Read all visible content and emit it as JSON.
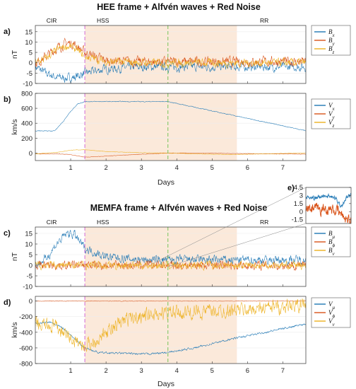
{
  "figure": {
    "titles": [
      "HEE frame + Alfvén waves + Red Noise",
      "MEMFA frame + Alfvén waves + Red Noise"
    ],
    "xlabel": "Days",
    "regions": [
      "CIR",
      "HSS",
      "RR"
    ],
    "colors": {
      "blue": "#1f77b4",
      "orange": "#d95319",
      "yellow": "#edb120",
      "shade": "#fbe9da",
      "magenta": "#d36ad9",
      "green": "#77c25a"
    }
  },
  "chart_data": [
    {
      "id": "a",
      "type": "line",
      "panel_label": "a)",
      "ylabel": "nT",
      "xlim": [
        0,
        7.65
      ],
      "ylim": [
        -10,
        18
      ],
      "xticks": [
        1,
        2,
        3,
        4,
        5,
        6,
        7
      ],
      "yticks": [
        -10,
        -5,
        0,
        5,
        10,
        15
      ],
      "shaded_region": [
        1.4,
        5.7
      ],
      "vlines": [
        {
          "x": 1.4,
          "color": "magenta"
        },
        {
          "x": 3.75,
          "color": "green"
        }
      ],
      "series": [
        {
          "name": "B",
          "subscript": "x",
          "color": "#1f77b4",
          "x": [
            0,
            0.3,
            0.6,
            0.9,
            1.1,
            1.4,
            2,
            3,
            4,
            5,
            6,
            7,
            7.65
          ],
          "y": [
            -2,
            -5,
            -7,
            -7.5,
            -7,
            -5,
            -3,
            -2,
            -2,
            -2,
            -2,
            -2,
            -2
          ],
          "noise": 1.6
        },
        {
          "name": "B",
          "subscript": "y",
          "color": "#d95319",
          "x": [
            0,
            0.3,
            0.6,
            0.9,
            1.1,
            1.4,
            2,
            3,
            4,
            5,
            6,
            7,
            7.65
          ],
          "y": [
            -0.5,
            3,
            7,
            9.5,
            9,
            5,
            1,
            0.5,
            0.5,
            0.5,
            0.5,
            0.5,
            0.5
          ],
          "noise": 1.8
        },
        {
          "name": "B",
          "subscript": "z",
          "color": "#edb120",
          "x": [
            0,
            0.3,
            0.6,
            0.9,
            1.1,
            1.4,
            2,
            3,
            4,
            5,
            6,
            7,
            7.65
          ],
          "y": [
            0,
            2,
            6,
            8,
            7,
            3,
            0.5,
            0,
            0,
            0,
            0,
            0,
            0
          ],
          "noise": 1.5
        }
      ]
    },
    {
      "id": "b",
      "type": "line",
      "panel_label": "b)",
      "ylabel": "km/s",
      "xlim": [
        0,
        7.65
      ],
      "ylim": [
        -100,
        800
      ],
      "xticks": [
        1,
        2,
        3,
        4,
        5,
        6,
        7
      ],
      "yticks": [
        0,
        200,
        400,
        600,
        800
      ],
      "xticklabels_shown": true,
      "shaded_region": [
        1.4,
        5.7
      ],
      "vlines": [
        {
          "x": 1.4,
          "color": "magenta"
        },
        {
          "x": 3.75,
          "color": "green"
        }
      ],
      "series": [
        {
          "name": "V",
          "subscript": "x",
          "color": "#1f77b4",
          "x": [
            0,
            0.55,
            0.8,
            1.0,
            1.2,
            1.4,
            3.75,
            7.65
          ],
          "y": [
            295,
            300,
            430,
            560,
            660,
            690,
            690,
            300
          ],
          "noise": 4
        },
        {
          "name": "V",
          "subscript": "y",
          "color": "#d95319",
          "x": [
            0,
            0.6,
            1.0,
            1.4,
            2.0,
            3.0,
            3.75,
            4.5,
            5.5,
            6.5,
            7.65
          ],
          "y": [
            -10,
            -12,
            -20,
            -55,
            -40,
            -15,
            0,
            0,
            -5,
            -10,
            -15
          ],
          "noise": 2
        },
        {
          "name": "V",
          "subscript": "z",
          "color": "#edb120",
          "x": [
            0,
            0.6,
            1.0,
            1.4,
            2.0,
            3.0,
            3.75,
            4.5,
            5.5,
            6.5,
            7.65
          ],
          "y": [
            -10,
            10,
            40,
            45,
            20,
            5,
            0,
            -10,
            -20,
            -10,
            0
          ],
          "noise": 2
        }
      ]
    },
    {
      "id": "c",
      "type": "line",
      "panel_label": "c)",
      "ylabel": "nT",
      "xlim": [
        0,
        7.65
      ],
      "ylim": [
        -10,
        18
      ],
      "xticks": [
        1,
        2,
        3,
        4,
        5,
        6,
        7
      ],
      "yticks": [
        -10,
        -5,
        0,
        5,
        10,
        15
      ],
      "shaded_region": [
        1.4,
        5.7
      ],
      "vlines": [
        {
          "x": 1.4,
          "color": "magenta"
        },
        {
          "x": 3.75,
          "color": "green"
        }
      ],
      "series": [
        {
          "name": "B",
          "subscript": "μ",
          "color": "#1f77b4",
          "x": [
            0,
            0.3,
            0.6,
            0.9,
            1.1,
            1.4,
            2,
            3,
            4,
            5,
            6,
            7,
            7.65
          ],
          "y": [
            0,
            3,
            10,
            15,
            14.5,
            8,
            4,
            2.5,
            2.5,
            2.5,
            2.5,
            2.5,
            2.5
          ],
          "noise": 1.6
        },
        {
          "name": "B",
          "subscript": "ϕ",
          "color": "#d95319",
          "x": [
            0,
            7.65
          ],
          "y": [
            0,
            0
          ],
          "noise": 1.6
        },
        {
          "name": "B",
          "subscript": "ν",
          "color": "#edb120",
          "x": [
            0,
            7.65
          ],
          "y": [
            0,
            0
          ],
          "noise": 1.4
        }
      ]
    },
    {
      "id": "d",
      "type": "line",
      "panel_label": "d)",
      "ylabel": "km/s",
      "xlim": [
        0,
        7.65
      ],
      "ylim": [
        -800,
        60
      ],
      "xticks": [
        1,
        2,
        3,
        4,
        5,
        6,
        7
      ],
      "yticks": [
        -800,
        -600,
        -400,
        -200,
        0
      ],
      "shaded_region": [
        1.4,
        5.7
      ],
      "vlines": [
        {
          "x": 1.4,
          "color": "magenta"
        },
        {
          "x": 3.75,
          "color": "green"
        }
      ],
      "series": [
        {
          "name": "V",
          "subscript": "μ",
          "color": "#1f77b4",
          "x": [
            0,
            0.4,
            0.8,
            1.1,
            1.4,
            1.8,
            2.5,
            3.0,
            3.75,
            4.5,
            5.5,
            6.5,
            7.65
          ],
          "y": [
            -290,
            -270,
            -350,
            -480,
            -600,
            -660,
            -670,
            -680,
            -660,
            -600,
            -490,
            -400,
            -290
          ],
          "noise": 10
        },
        {
          "name": "V",
          "subscript": "ϕ",
          "color": "#d95319",
          "x": [
            0,
            7.65
          ],
          "y": [
            0,
            0
          ],
          "noise": 3
        },
        {
          "name": "V",
          "subscript": "ν",
          "color": "#edb120",
          "x": [
            0,
            0.5,
            0.8,
            1.0,
            1.4,
            2.0,
            2.5,
            3.0,
            4.0,
            5.0,
            6.0,
            7.0,
            7.65
          ],
          "y": [
            -300,
            -320,
            -400,
            -480,
            -580,
            -420,
            -250,
            -180,
            -150,
            -130,
            -110,
            -70,
            -50
          ],
          "noise": 70
        }
      ]
    },
    {
      "id": "e",
      "type": "line",
      "panel_label": "e)",
      "xlim": [
        3.3,
        3.75
      ],
      "ylim": [
        -2.2,
        4.5
      ],
      "yticks": [
        -1.5,
        0,
        1.5,
        3,
        4.5
      ],
      "series": [
        {
          "name": "B",
          "subscript": "μ",
          "color": "#1f77b4",
          "x": [
            3.3,
            3.4,
            3.5,
            3.6,
            3.65,
            3.7,
            3.75
          ],
          "y": [
            2.6,
            2.5,
            3.0,
            2.4,
            1.0,
            2.5,
            3.0
          ],
          "noise": 0.3
        },
        {
          "name": "B",
          "subscript": "ϕ",
          "color": "#d95319",
          "x": [
            3.3,
            3.5,
            3.6,
            3.7,
            3.75
          ],
          "y": [
            0.3,
            0.5,
            0.2,
            -1.2,
            -1.8
          ],
          "noise": 0.8
        }
      ]
    }
  ]
}
